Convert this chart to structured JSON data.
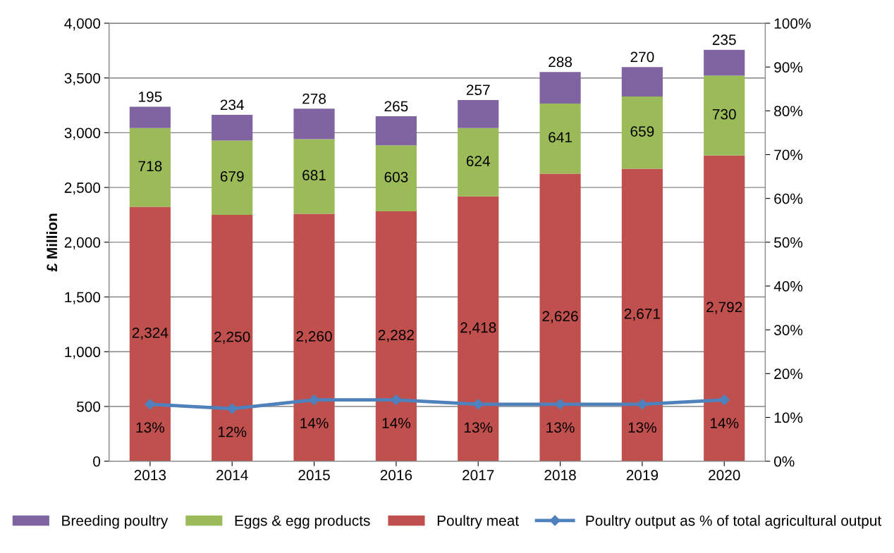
{
  "chart_data": {
    "type": "bar",
    "stacked": true,
    "ylabel": "£ Million",
    "categories": [
      "2013",
      "2014",
      "2015",
      "2016",
      "2017",
      "2018",
      "2019",
      "2020"
    ],
    "series": [
      {
        "name": "Poultry meat",
        "color": "#c0504d",
        "values": [
          2324,
          2250,
          2260,
          2282,
          2418,
          2626,
          2671,
          2792
        ],
        "value_labels": [
          "2,324",
          "2,250",
          "2,260",
          "2,282",
          "2,418",
          "2,626",
          "2,671",
          "2,792"
        ]
      },
      {
        "name": "Eggs & egg products",
        "color": "#9bbb59",
        "values": [
          718,
          679,
          681,
          603,
          624,
          641,
          659,
          730
        ],
        "value_labels": [
          "718",
          "679",
          "681",
          "603",
          "624",
          "641",
          "659",
          "730"
        ]
      },
      {
        "name": "Breeding poultry",
        "color": "#8064a2",
        "values": [
          195,
          234,
          278,
          265,
          257,
          288,
          270,
          235
        ],
        "value_labels": [
          "195",
          "234",
          "278",
          "265",
          "257",
          "288",
          "270",
          "235"
        ]
      },
      {
        "name": "Poultry output as % of total agricultural output",
        "type": "line",
        "axis": "y2",
        "color": "#4f81bd",
        "marker": "diamond",
        "values": [
          13,
          12,
          14,
          14,
          13,
          13,
          13,
          14
        ],
        "value_labels": [
          "13%",
          "12%",
          "14%",
          "14%",
          "13%",
          "13%",
          "13%",
          "14%"
        ]
      }
    ],
    "ylim": [
      0,
      4000
    ],
    "yticks": [
      {
        "value": 0,
        "label": "0"
      },
      {
        "value": 500,
        "label": "500"
      },
      {
        "value": 1000,
        "label": "1,000"
      },
      {
        "value": 1500,
        "label": "1,500"
      },
      {
        "value": 2000,
        "label": "2,000"
      },
      {
        "value": 2500,
        "label": "2,500"
      },
      {
        "value": 3000,
        "label": "3,000"
      },
      {
        "value": 3500,
        "label": "3,500"
      },
      {
        "value": 4000,
        "label": "4,000"
      }
    ],
    "y2lim": [
      0,
      100
    ],
    "y2ticks": [
      {
        "value": 0,
        "label": "0%"
      },
      {
        "value": 10,
        "label": "10%"
      },
      {
        "value": 20,
        "label": "20%"
      },
      {
        "value": 30,
        "label": "30%"
      },
      {
        "value": 40,
        "label": "40%"
      },
      {
        "value": 50,
        "label": "50%"
      },
      {
        "value": 60,
        "label": "60%"
      },
      {
        "value": 70,
        "label": "70%"
      },
      {
        "value": 80,
        "label": "80%"
      },
      {
        "value": 90,
        "label": "90%"
      },
      {
        "value": 100,
        "label": "100%"
      }
    ],
    "grid": "y",
    "legend": "bottom"
  }
}
